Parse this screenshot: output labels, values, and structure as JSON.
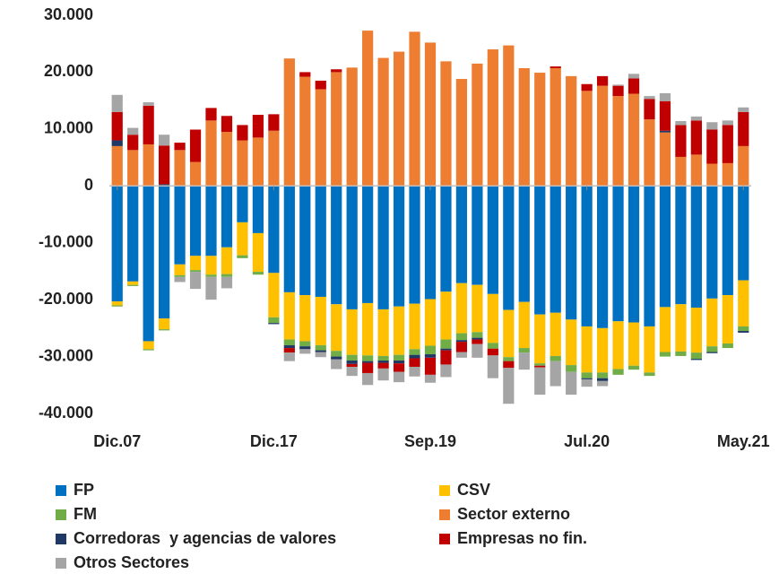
{
  "chart_data": {
    "type": "stacked-bar",
    "categories": [
      "Dic.07",
      null,
      null,
      null,
      null,
      null,
      null,
      null,
      null,
      null,
      "Dic.17",
      null,
      null,
      null,
      null,
      null,
      null,
      null,
      null,
      null,
      "Sep.19",
      null,
      null,
      null,
      null,
      null,
      null,
      null,
      null,
      null,
      "Jul.20",
      null,
      null,
      null,
      null,
      null,
      null,
      null,
      null,
      null,
      "May.21"
    ],
    "ylim": [
      -40000,
      30000
    ],
    "yticks": [
      {
        "value": 30000,
        "label": "30.000"
      },
      {
        "value": 20000,
        "label": "20.000"
      },
      {
        "value": 10000,
        "label": "10.000"
      },
      0,
      {
        "value": -10000,
        "label": "-10.000"
      },
      {
        "value": -20000,
        "label": "-20.000"
      },
      {
        "value": -30000,
        "label": "-30.000"
      },
      {
        "value": -40000,
        "label": "-40.000"
      }
    ],
    "grid": false,
    "series": [
      {
        "name": "FP",
        "color": "#0070c0",
        "values": [
          -20300,
          -16800,
          -27300,
          -23300,
          -13800,
          -12300,
          -12300,
          -10800,
          -6400,
          -8300,
          -15300,
          -18700,
          -19200,
          -19500,
          -20800,
          -21700,
          -20600,
          -21700,
          -21200,
          -20700,
          -19900,
          -18600,
          -17100,
          -17400,
          -19000,
          -21800,
          -20400,
          -22600,
          -22300,
          -23500,
          -24700,
          -25000,
          -23800,
          -24000,
          -24700,
          -21300,
          -20800,
          -21400,
          -19800,
          -19200,
          -16600
        ]
      },
      {
        "name": "CSV",
        "color": "#ffc000",
        "values": [
          -700,
          -600,
          -1400,
          -1900,
          -1900,
          -2500,
          -3300,
          -4700,
          -5800,
          -6800,
          -7800,
          -8300,
          -8100,
          -8500,
          -8200,
          -8000,
          -9200,
          -8200,
          -8500,
          -8000,
          -8200,
          -8400,
          -8800,
          -8300,
          -8600,
          -8300,
          -8100,
          -8600,
          -7600,
          -8000,
          -8100,
          -7800,
          -8400,
          -7600,
          -8100,
          -7900,
          -8300,
          -7900,
          -8400,
          -8500,
          -8100
        ]
      },
      {
        "name": "FM",
        "color": "#70ad47",
        "values": [
          -200,
          -200,
          -200,
          -200,
          -300,
          -300,
          -400,
          -500,
          -500,
          -500,
          -1000,
          -1000,
          -900,
          -900,
          -1000,
          -1000,
          -1000,
          -800,
          -1000,
          -1000,
          -1500,
          -1600,
          -1200,
          -1000,
          -1000,
          -700,
          -800,
          -400,
          -900,
          -1200,
          -1000,
          -1000,
          -1000,
          -700,
          -600,
          -800,
          -800,
          -1100,
          -1000,
          -800,
          -800
        ]
      },
      {
        "name": "Sector externo",
        "color": "#ed7d31",
        "values": [
          7000,
          6300,
          7300,
          0,
          6300,
          4200,
          11500,
          9500,
          8000,
          8500,
          9700,
          22400,
          19200,
          17000,
          20000,
          20800,
          27300,
          22500,
          23600,
          27100,
          25200,
          21900,
          18800,
          21500,
          24000,
          24700,
          20700,
          19900,
          20700,
          19300,
          16700,
          17600,
          15800,
          16200,
          11700,
          9400,
          5100,
          5500,
          3900,
          4000,
          7000
        ]
      },
      {
        "name": "Corredoras  y agencias de valores",
        "color": "#203864",
        "values": [
          1000,
          0,
          0,
          300,
          0,
          0,
          0,
          0,
          0,
          0,
          -200,
          -500,
          -500,
          -300,
          -500,
          -600,
          -300,
          -400,
          -500,
          -600,
          -600,
          -300,
          -300,
          -300,
          0,
          0,
          0,
          0,
          0,
          0,
          -200,
          -500,
          0,
          0,
          0,
          300,
          0,
          -200,
          -200,
          0,
          -300
        ]
      },
      {
        "name": "Empresas no fin.",
        "color": "#c00000",
        "values": [
          5000,
          2700,
          6800,
          6800,
          1300,
          5700,
          2200,
          2800,
          2700,
          4000,
          2900,
          -800,
          800,
          1500,
          500,
          -500,
          -1800,
          -1000,
          -1500,
          -1500,
          -3000,
          -2500,
          -1800,
          -800,
          -1200,
          -1200,
          0,
          -300,
          300,
          0,
          1200,
          1700,
          1800,
          2700,
          3600,
          5200,
          5600,
          6000,
          6000,
          6700,
          6000
        ]
      },
      {
        "name": "Otros Sectores",
        "color": "#a5a5a5",
        "values": [
          3000,
          1200,
          600,
          1900,
          -900,
          -3000,
          -4000,
          -2000,
          0,
          0,
          0,
          -1500,
          -800,
          -900,
          -1700,
          -1600,
          -2100,
          -2100,
          -1800,
          -1700,
          -1400,
          -2200,
          -1000,
          -2400,
          -4000,
          -6300,
          -3000,
          -4800,
          -4400,
          -4000,
          -1300,
          -900,
          200,
          800,
          500,
          1400,
          700,
          700,
          1300,
          800,
          800
        ]
      }
    ]
  }
}
